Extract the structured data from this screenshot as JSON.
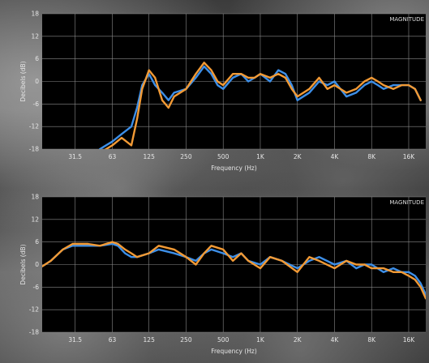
{
  "chart_data": [
    {
      "type": "line",
      "panel_label": "MAGNITUDE",
      "xlabel": "Frequency (Hz)",
      "ylabel": "Decibels (dB)",
      "x_scale": "log",
      "xlim": [
        17,
        22000
      ],
      "ylim": [
        -18,
        18
      ],
      "y_ticks": [
        "18",
        "12",
        "6",
        "0",
        "-6",
        "-12",
        "-18"
      ],
      "y_tick_values": [
        18,
        12,
        6,
        0,
        -6,
        -12,
        -18
      ],
      "x_ticks": [
        "31.5",
        "63",
        "125",
        "250",
        "500",
        "1K",
        "2K",
        "4K",
        "8K",
        "16K"
      ],
      "x_tick_values": [
        31.5,
        63,
        125,
        250,
        500,
        1000,
        2000,
        4000,
        8000,
        16000
      ],
      "grid": true,
      "colors": {
        "blue": "#3d8fe8",
        "orange": "#f29a35",
        "grid": "#8a8a8a",
        "plot_bg": "#000000"
      },
      "series": [
        {
          "color": "blue",
          "x": [
            50,
            63,
            75,
            90,
            100,
            110,
            125,
            140,
            160,
            180,
            200,
            250,
            300,
            350,
            400,
            450,
            500,
            600,
            700,
            800,
            900,
            1000,
            1200,
            1400,
            1600,
            1800,
            2000,
            2500,
            3000,
            3500,
            4000,
            5000,
            6000,
            7000,
            8000,
            9000,
            10000,
            12000,
            14000,
            16000,
            18000,
            20000
          ],
          "y": [
            -18,
            -16,
            -14,
            -12,
            -7,
            -1,
            2,
            -1,
            -3,
            -5,
            -3,
            -2,
            1,
            4,
            2,
            -1,
            -2,
            1,
            2,
            0,
            1,
            2,
            0,
            3,
            2,
            -1,
            -5,
            -3,
            0,
            -1,
            0,
            -4,
            -3,
            -1,
            0,
            -1,
            -2,
            -1,
            -1,
            -1,
            -2,
            -5
          ]
        },
        {
          "color": "orange",
          "x": [
            50,
            63,
            75,
            90,
            100,
            110,
            125,
            140,
            160,
            180,
            200,
            250,
            300,
            350,
            400,
            450,
            500,
            600,
            700,
            800,
            900,
            1000,
            1200,
            1400,
            1600,
            1800,
            2000,
            2500,
            3000,
            3500,
            4000,
            5000,
            6000,
            7000,
            8000,
            9000,
            10000,
            12000,
            14000,
            16000,
            18000,
            20000
          ],
          "y": [
            -19,
            -17,
            -15,
            -17,
            -10,
            -2,
            3,
            1,
            -5,
            -7,
            -4,
            -2,
            2,
            5,
            3,
            0,
            -1,
            2,
            2,
            1,
            1,
            2,
            1,
            2,
            1,
            -2,
            -4,
            -2,
            1,
            -2,
            -1,
            -3,
            -2,
            0,
            1,
            0,
            -1,
            -2,
            -1,
            -1,
            -2,
            -5
          ]
        }
      ]
    },
    {
      "type": "line",
      "panel_label": "MAGNITUDE",
      "xlabel": "Frequency (Hz)",
      "ylabel": "Decibels (dB)",
      "x_scale": "log",
      "xlim": [
        17,
        22000
      ],
      "ylim": [
        -18,
        18
      ],
      "y_ticks": [
        "18",
        "12",
        "6",
        "0",
        "-6",
        "-12",
        "-18"
      ],
      "y_tick_values": [
        18,
        12,
        6,
        0,
        -6,
        -12,
        -18
      ],
      "x_ticks": [
        "31.5",
        "63",
        "125",
        "250",
        "500",
        "1K",
        "2K",
        "4K",
        "8K",
        "16K"
      ],
      "x_tick_values": [
        31.5,
        63,
        125,
        250,
        500,
        1000,
        2000,
        4000,
        8000,
        16000
      ],
      "grid": true,
      "colors": {
        "blue": "#3d8fe8",
        "orange": "#f29a35",
        "grid": "#8a8a8a",
        "plot_bg": "#000000"
      },
      "series": [
        {
          "color": "blue",
          "x": [
            17,
            20,
            25,
            30,
            40,
            50,
            63,
            70,
            80,
            90,
            100,
            125,
            150,
            200,
            250,
            300,
            350,
            400,
            500,
            600,
            700,
            800,
            1000,
            1200,
            1500,
            2000,
            2500,
            3000,
            4000,
            5000,
            6000,
            7000,
            8000,
            10000,
            12000,
            14000,
            16000,
            18000,
            20000,
            22000
          ],
          "y": [
            -0.5,
            1,
            4,
            5,
            5,
            5,
            5.5,
            5,
            3,
            2,
            2,
            3,
            4,
            3,
            2,
            1,
            3,
            4,
            3,
            2,
            3,
            1,
            0,
            2,
            1,
            -1,
            1,
            2,
            0,
            1,
            -1,
            0,
            0,
            -2,
            -1,
            -2,
            -2,
            -3,
            -5,
            -8
          ]
        },
        {
          "color": "orange",
          "x": [
            17,
            20,
            25,
            30,
            40,
            50,
            63,
            70,
            80,
            90,
            100,
            125,
            150,
            200,
            250,
            300,
            350,
            400,
            500,
            600,
            700,
            800,
            1000,
            1200,
            1500,
            2000,
            2500,
            3000,
            4000,
            5000,
            6000,
            7000,
            8000,
            10000,
            12000,
            14000,
            16000,
            18000,
            20000,
            22000
          ],
          "y": [
            -0.5,
            1,
            4,
            5.5,
            5.5,
            5,
            6,
            5.5,
            4,
            3,
            2,
            3,
            5,
            4,
            2,
            0,
            3,
            5,
            4,
            1,
            3,
            1,
            -1,
            2,
            1,
            -2,
            2,
            1,
            -1,
            1,
            0,
            0,
            -1,
            -1,
            -2,
            -2,
            -3,
            -4,
            -6,
            -9
          ]
        }
      ]
    }
  ]
}
